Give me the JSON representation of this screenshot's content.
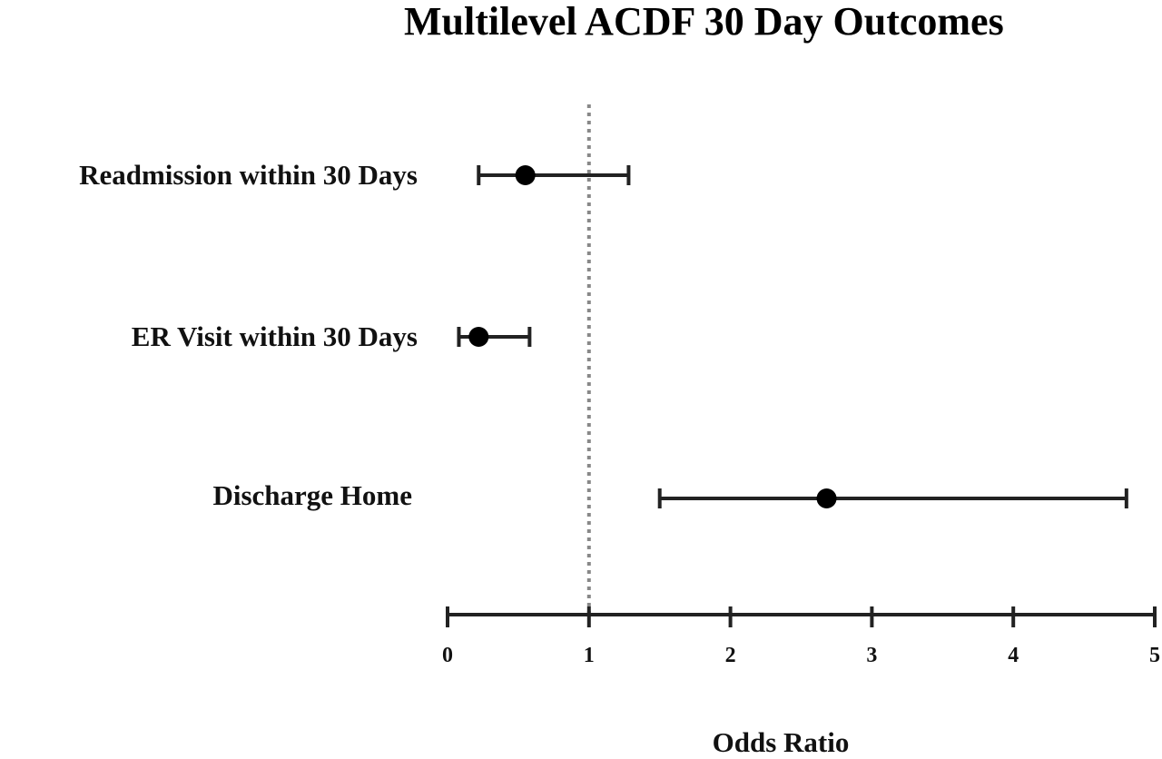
{
  "chart_data": {
    "type": "forest",
    "title": "Multilevel ACDF 30 Day Outcomes",
    "xlabel": "Odds Ratio",
    "xlim": [
      0,
      5
    ],
    "xticks": [
      "0",
      "1",
      "2",
      "3",
      "4",
      "5"
    ],
    "reference_line": 1,
    "rows": [
      {
        "label": "Readmission within 30 Days",
        "estimate": 0.55,
        "lower": 0.22,
        "upper": 1.28
      },
      {
        "label": "ER Visit within 30 Days",
        "estimate": 0.22,
        "lower": 0.08,
        "upper": 0.58
      },
      {
        "label": "Discharge Home",
        "estimate": 2.68,
        "lower": 1.5,
        "upper": 4.8
      }
    ],
    "colors": {
      "marker": "#000000",
      "line": "#222222",
      "reference": "#888888"
    }
  }
}
